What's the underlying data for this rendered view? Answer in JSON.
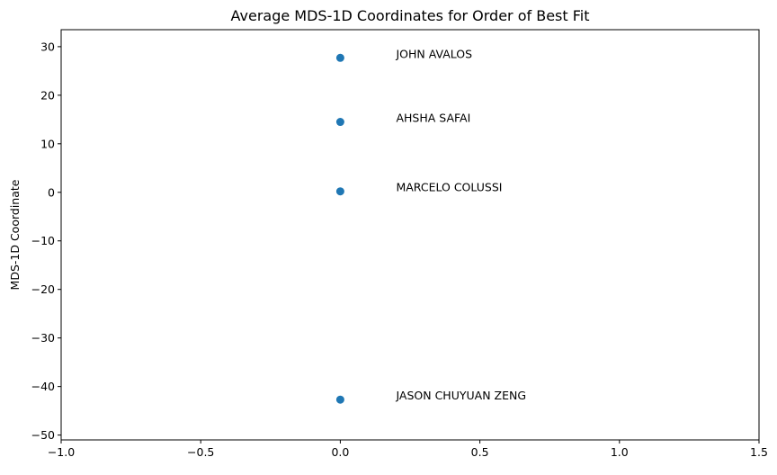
{
  "chart_data": {
    "type": "scatter",
    "title": "Average MDS-1D Coordinates for Order of Best Fit",
    "xlabel": "",
    "ylabel": "MDS-1D Coordinate",
    "xlim": [
      -1.0,
      1.5
    ],
    "ylim": [
      -51,
      33.5
    ],
    "grid": false,
    "marker_color": "#1f77b4",
    "x_ticks": [
      -1.0,
      -0.5,
      0.0,
      0.5,
      1.0,
      1.5
    ],
    "x_tick_labels": [
      "−1.0",
      "−0.5",
      "0.0",
      "0.5",
      "1.0",
      "1.5"
    ],
    "y_ticks": [
      30,
      20,
      10,
      0,
      -10,
      -20,
      -30,
      -40,
      -50
    ],
    "y_tick_labels": [
      "30",
      "20",
      "10",
      "0",
      "−10",
      "−20",
      "−30",
      "−40",
      "−50"
    ],
    "points": [
      {
        "x": 0.0,
        "y": 27.7,
        "label": "JOHN AVALOS"
      },
      {
        "x": 0.0,
        "y": 14.5,
        "label": "AHSHA SAFAI"
      },
      {
        "x": 0.0,
        "y": 0.2,
        "label": "MARCELO COLUSSI"
      },
      {
        "x": 0.0,
        "y": -42.7,
        "label": "JASON CHUYUAN ZENG"
      }
    ]
  }
}
